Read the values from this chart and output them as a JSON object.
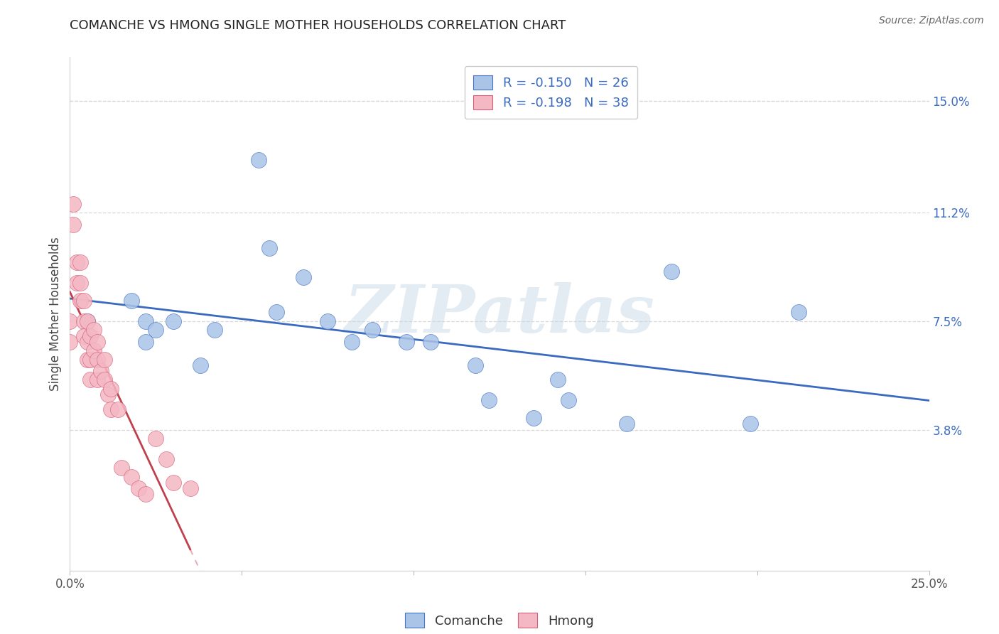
{
  "title": "COMANCHE VS HMONG SINGLE MOTHER HOUSEHOLDS CORRELATION CHART",
  "source": "Source: ZipAtlas.com",
  "ylabel": "Single Mother Households",
  "xlim": [
    0.0,
    0.25
  ],
  "ylim": [
    -0.01,
    0.165
  ],
  "xticks": [
    0.0,
    0.05,
    0.1,
    0.15,
    0.2,
    0.25
  ],
  "ytick_vals_right": [
    0.038,
    0.075,
    0.112,
    0.15
  ],
  "ytick_labels_right": [
    "3.8%",
    "7.5%",
    "11.2%",
    "15.0%"
  ],
  "grid_yticks": [
    0.038,
    0.075,
    0.112,
    0.15
  ],
  "comanche_face_color": "#aac4e8",
  "comanche_edge_color": "#4472c4",
  "hmong_face_color": "#f4b8c4",
  "hmong_edge_color": "#d4607a",
  "comanche_line_color": "#3a6bbf",
  "hmong_line_solid_color": "#c0404e",
  "hmong_line_dash_color": "#e8b0b8",
  "R_comanche": -0.15,
  "N_comanche": 26,
  "R_hmong": -0.198,
  "N_hmong": 38,
  "legend_text_color": "#3a6bbf",
  "watermark": "ZIPatlas",
  "comanche_x": [
    0.005,
    0.018,
    0.022,
    0.022,
    0.025,
    0.03,
    0.038,
    0.042,
    0.055,
    0.058,
    0.06,
    0.068,
    0.075,
    0.082,
    0.088,
    0.098,
    0.105,
    0.118,
    0.122,
    0.135,
    0.142,
    0.145,
    0.162,
    0.175,
    0.198,
    0.212
  ],
  "comanche_y": [
    0.075,
    0.082,
    0.075,
    0.068,
    0.072,
    0.075,
    0.06,
    0.072,
    0.13,
    0.1,
    0.078,
    0.09,
    0.075,
    0.068,
    0.072,
    0.068,
    0.068,
    0.06,
    0.048,
    0.042,
    0.055,
    0.048,
    0.04,
    0.092,
    0.04,
    0.078
  ],
  "hmong_x": [
    0.0,
    0.0,
    0.001,
    0.001,
    0.002,
    0.002,
    0.003,
    0.003,
    0.003,
    0.004,
    0.004,
    0.004,
    0.005,
    0.005,
    0.005,
    0.006,
    0.006,
    0.006,
    0.007,
    0.007,
    0.008,
    0.008,
    0.008,
    0.009,
    0.01,
    0.01,
    0.011,
    0.012,
    0.012,
    0.014,
    0.015,
    0.018,
    0.02,
    0.022,
    0.025,
    0.028,
    0.03,
    0.035
  ],
  "hmong_y": [
    0.075,
    0.068,
    0.115,
    0.108,
    0.095,
    0.088,
    0.095,
    0.088,
    0.082,
    0.082,
    0.075,
    0.07,
    0.075,
    0.068,
    0.062,
    0.07,
    0.062,
    0.055,
    0.072,
    0.065,
    0.068,
    0.062,
    0.055,
    0.058,
    0.062,
    0.055,
    0.05,
    0.052,
    0.045,
    0.045,
    0.025,
    0.022,
    0.018,
    0.016,
    0.035,
    0.028,
    0.02,
    0.018
  ]
}
